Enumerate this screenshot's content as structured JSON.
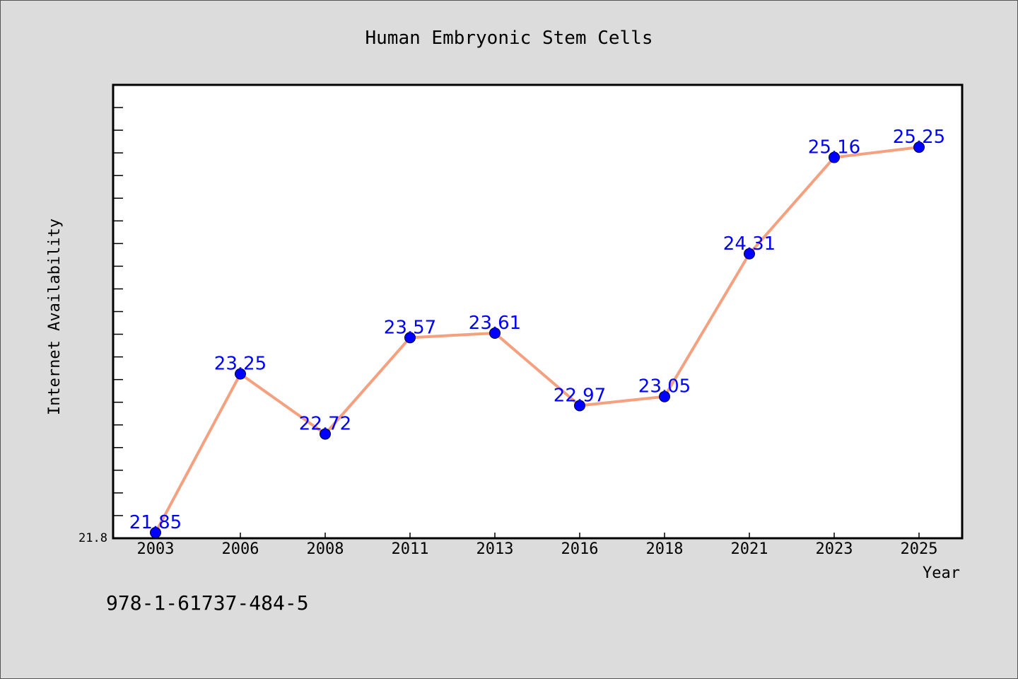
{
  "chart_data": {
    "type": "line",
    "title": "Human Embryonic Stem Cells",
    "xlabel": "Year",
    "ylabel": "Internet Availability",
    "categories": [
      "2003",
      "2006",
      "2008",
      "2011",
      "2013",
      "2016",
      "2018",
      "2021",
      "2023",
      "2025"
    ],
    "series": [
      {
        "values": [
          21.85,
          23.25,
          22.72,
          23.57,
          23.61,
          22.97,
          23.05,
          24.31,
          25.16,
          25.25
        ],
        "labels": [
          "21.85",
          "23.25",
          "22.72",
          "23.57",
          "23.61",
          "22.97",
          "23.05",
          "24.31",
          "25.16",
          "25.25"
        ],
        "line_color": "#f5a07f",
        "marker_color": "#0000ff"
      }
    ],
    "y_tick_labels": [
      "21.8"
    ],
    "ylim": [
      21.8,
      25.8
    ],
    "grid": false,
    "legend": "none"
  },
  "footer": {
    "isbn": "978-1-61737-484-5"
  }
}
